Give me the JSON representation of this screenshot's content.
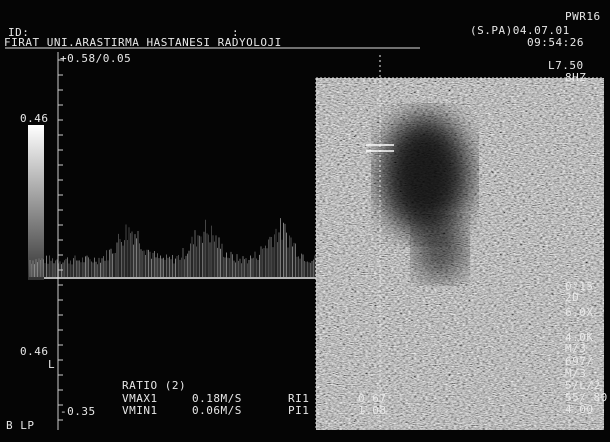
{
  "header": {
    "id": "ID:",
    "colon": ":",
    "mode": "PWR16",
    "probe": "(S.PA)04.07.01",
    "institution": "FIRAT UNI.ARASTIRMA HASTANESI RADYOLOJI",
    "time": "09:54:26"
  },
  "doppler": {
    "scale_top": "+0.58/0.05",
    "velocity_top": "0.46",
    "velocity_bottom": "0.46",
    "marker": "L",
    "scale_bottom": "-0.35",
    "mode": "B LP"
  },
  "measurements": {
    "title": "RATIO (2)",
    "rows": [
      [
        "VMAX1",
        "0.18M/S",
        "RI1",
        "0.67"
      ],
      [
        "VMIN1",
        "0.06M/S",
        "PI1",
        "1.08"
      ]
    ]
  },
  "image": {
    "probe": "L7.50",
    "freq": "8HZ",
    "settings": [
      "0°15",
      "2D",
      "6.0X",
      "4.0K",
      "M/3",
      "697/",
      "M/3",
      "5/L/2",
      "55/ 80",
      "4.00"
    ]
  }
}
